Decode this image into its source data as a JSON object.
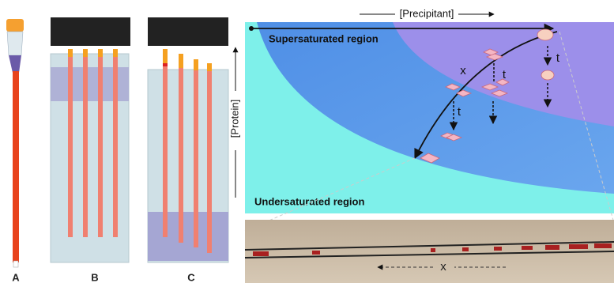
{
  "panels": {
    "a": {
      "label": "A"
    },
    "b": {
      "label": "B"
    },
    "c": {
      "label": "C"
    }
  },
  "phase_diagram": {
    "x_axis_label": "[Precipitant]",
    "y_axis_label": "[Protein]",
    "regions": [
      "Supersaturated region",
      "Undersaturated region"
    ],
    "annotations": [
      "x",
      "t",
      "t",
      "t"
    ]
  },
  "photo": {
    "annotation": "x"
  }
}
